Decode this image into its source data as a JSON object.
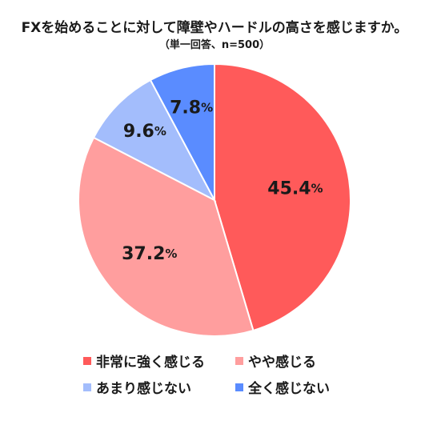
{
  "title": "FXを始めることに対して障壁やハードルの高さを感じますか。",
  "subtitle": "（単一回答、n=500）",
  "chart_data": {
    "type": "pie",
    "categories": [
      "非常に強く感じる",
      "やや感じる",
      "あまり感じない",
      "全く感じない"
    ],
    "values": [
      45.4,
      37.2,
      9.6,
      7.8
    ],
    "value_labels": [
      "45.4",
      "37.2",
      "9.6",
      "7.8"
    ],
    "unit": "%",
    "colors": [
      "#ff5a5a",
      "#ff9e9e",
      "#a3bdfc",
      "#5a8cff"
    ],
    "start_angle": "12 o'clock",
    "direction": "clockwise",
    "legend_position": "bottom"
  }
}
